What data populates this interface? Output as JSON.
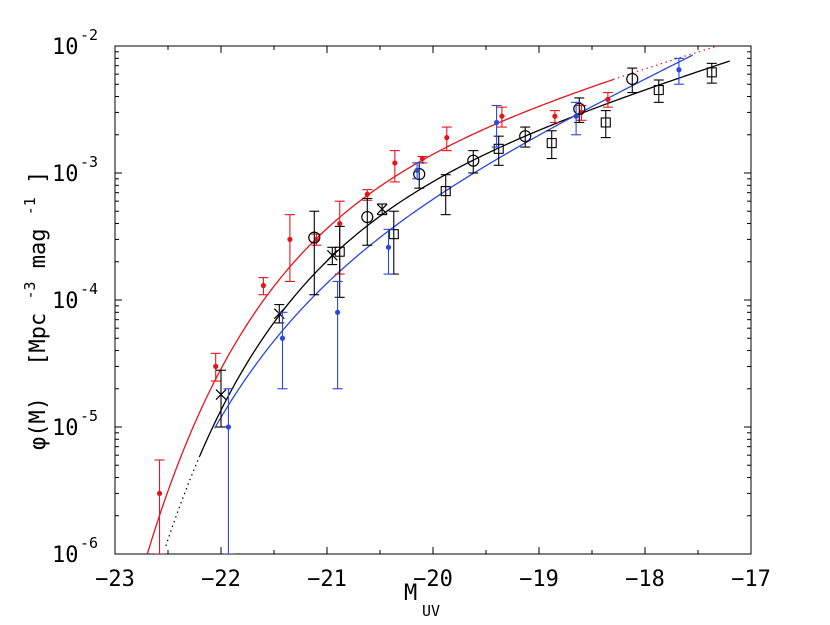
{
  "chart_data": {
    "type": "scatter",
    "xlabel": "M",
    "xlabel_sub": "UV",
    "ylabel_main": "φ(M)",
    "ylabel_unit_open": "[Mpc",
    "ylabel_unit_exp1": "-3",
    "ylabel_unit_mid": "mag",
    "ylabel_unit_exp2": "-1",
    "ylabel_unit_close": "]",
    "xlim": [
      -23,
      -17
    ],
    "ylim": [
      1e-06,
      0.01
    ],
    "y_scale": "log",
    "grid": false,
    "legend": "none",
    "x_ticks": [
      -23,
      -22,
      -21,
      -20,
      -19,
      -18,
      -17
    ],
    "x_tick_labels": [
      "−23",
      "−22",
      "−21",
      "−20",
      "−19",
      "−18",
      "−17"
    ],
    "y_ticks": [
      {
        "value": 1e-06,
        "base": "10",
        "exp": "-6"
      },
      {
        "value": 1e-05,
        "base": "10",
        "exp": "-5"
      },
      {
        "value": 0.0001,
        "base": "10",
        "exp": "-4"
      },
      {
        "value": 0.001,
        "base": "10",
        "exp": "-3"
      },
      {
        "value": 0.01,
        "base": "10",
        "exp": "-2"
      }
    ],
    "series": [
      {
        "color": "#e8141c",
        "marker": "dot",
        "points": [
          {
            "x": -22.58,
            "y": 3e-06,
            "lo": 1e-06,
            "hi": 5.5e-06
          },
          {
            "x": -22.05,
            "y": 3e-05,
            "lo": 2.3e-05,
            "hi": 3.8e-05
          },
          {
            "x": -21.6,
            "y": 0.00013,
            "lo": 0.00011,
            "hi": 0.00015
          },
          {
            "x": -21.35,
            "y": 0.0003,
            "lo": 0.00014,
            "hi": 0.00047
          },
          {
            "x": -21.1,
            "y": 0.0003,
            "lo": 0.00027,
            "hi": 0.00033
          },
          {
            "x": -20.88,
            "y": 0.0004,
            "lo": 0.00016,
            "hi": 0.0006
          },
          {
            "x": -20.62,
            "y": 0.00068,
            "lo": 0.00061,
            "hi": 0.00074
          },
          {
            "x": -20.36,
            "y": 0.0012,
            "lo": 0.00085,
            "hi": 0.0015
          },
          {
            "x": -20.1,
            "y": 0.0013,
            "lo": 0.0012,
            "hi": 0.00135
          },
          {
            "x": -19.87,
            "y": 0.0019,
            "lo": 0.0015,
            "hi": 0.0023
          },
          {
            "x": -19.35,
            "y": 0.0028,
            "lo": 0.0023,
            "hi": 0.0033
          },
          {
            "x": -18.85,
            "y": 0.0028,
            "lo": 0.0025,
            "hi": 0.0031
          },
          {
            "x": -18.6,
            "y": 0.003,
            "lo": 0.0026,
            "hi": 0.0034
          },
          {
            "x": -18.35,
            "y": 0.0038,
            "lo": 0.0033,
            "hi": 0.0043
          }
        ],
        "fit": {
          "phi_star": 0.00175,
          "m_star": -20.7,
          "alpha": -1.6
        },
        "fit_solid_range": [
          -22.8,
          -18.3
        ],
        "fit_dotted_range": [
          -18.3,
          -17.3
        ]
      },
      {
        "color": "#000000",
        "marker": "mixed",
        "points": [
          {
            "x": -22.0,
            "y": 1.8e-05,
            "lo": 1e-05,
            "hi": 2.8e-05,
            "m": "x"
          },
          {
            "x": -21.45,
            "y": 7.8e-05,
            "lo": 6.6e-05,
            "hi": 9.2e-05,
            "m": "x"
          },
          {
            "x": -21.12,
            "y": 0.00031,
            "lo": 0.00011,
            "hi": 0.0005,
            "m": "o"
          },
          {
            "x": -20.95,
            "y": 0.000225,
            "lo": 0.00019,
            "hi": 0.00026,
            "m": "x"
          },
          {
            "x": -20.88,
            "y": 0.00024,
            "lo": 0.000105,
            "hi": 0.00038,
            "m": "s"
          },
          {
            "x": -20.62,
            "y": 0.00045,
            "lo": 0.00027,
            "hi": 0.00063,
            "m": "o"
          },
          {
            "x": -20.48,
            "y": 0.00052,
            "lo": 0.00047,
            "hi": 0.00057,
            "m": "x"
          },
          {
            "x": -20.37,
            "y": 0.00033,
            "lo": 0.00016,
            "hi": 0.0005,
            "m": "s"
          },
          {
            "x": -20.13,
            "y": 0.00098,
            "lo": 0.00076,
            "hi": 0.0012,
            "m": "o"
          },
          {
            "x": -19.88,
            "y": 0.00072,
            "lo": 0.00047,
            "hi": 0.00097,
            "m": "s"
          },
          {
            "x": -19.62,
            "y": 0.00125,
            "lo": 0.001,
            "hi": 0.0015,
            "m": "o"
          },
          {
            "x": -19.38,
            "y": 0.00155,
            "lo": 0.00115,
            "hi": 0.00195,
            "m": "s"
          },
          {
            "x": -19.13,
            "y": 0.00195,
            "lo": 0.0016,
            "hi": 0.0023,
            "m": "o"
          },
          {
            "x": -18.88,
            "y": 0.00172,
            "lo": 0.0013,
            "hi": 0.00215,
            "m": "s"
          },
          {
            "x": -18.62,
            "y": 0.0032,
            "lo": 0.0025,
            "hi": 0.0039,
            "m": "o"
          },
          {
            "x": -18.37,
            "y": 0.0025,
            "lo": 0.0019,
            "hi": 0.0031,
            "m": "s"
          },
          {
            "x": -18.12,
            "y": 0.0055,
            "lo": 0.0043,
            "hi": 0.0067,
            "m": "o"
          },
          {
            "x": -17.87,
            "y": 0.0045,
            "lo": 0.0036,
            "hi": 0.0054,
            "m": "s"
          },
          {
            "x": -17.37,
            "y": 0.0062,
            "lo": 0.0051,
            "hi": 0.0073,
            "m": "s"
          }
        ],
        "fit": {
          "phi_star": 0.0011,
          "m_star": -20.64,
          "alpha": -1.65
        },
        "fit_solid_range": [
          -22.2,
          -17.2
        ],
        "fit_dotted_range": [
          -22.52,
          -22.2
        ]
      },
      {
        "color": "#2a47e0",
        "marker": "dot",
        "points": [
          {
            "x": -21.93,
            "y": 1e-05,
            "lo": 1e-06,
            "hi": 2e-05
          },
          {
            "x": -21.42,
            "y": 5e-05,
            "lo": 2e-05,
            "hi": 8e-05
          },
          {
            "x": -20.9,
            "y": 8e-05,
            "lo": 2e-05,
            "hi": 0.00014
          },
          {
            "x": -20.42,
            "y": 0.00026,
            "lo": 0.00016,
            "hi": 0.00036
          },
          {
            "x": -20.15,
            "y": 0.00105,
            "lo": 0.0009,
            "hi": 0.0012
          },
          {
            "x": -19.4,
            "y": 0.0025,
            "lo": 0.0016,
            "hi": 0.0034
          },
          {
            "x": -18.65,
            "y": 0.0028,
            "lo": 0.002,
            "hi": 0.0036
          },
          {
            "x": -17.68,
            "y": 0.0065,
            "lo": 0.005,
            "hi": 0.008
          }
        ],
        "fit": {
          "phi_star": 0.0004,
          "m_star": -21.0,
          "alpha": -2.0
        },
        "fit_solid_range": [
          -22.06,
          -17.55
        ]
      }
    ]
  }
}
